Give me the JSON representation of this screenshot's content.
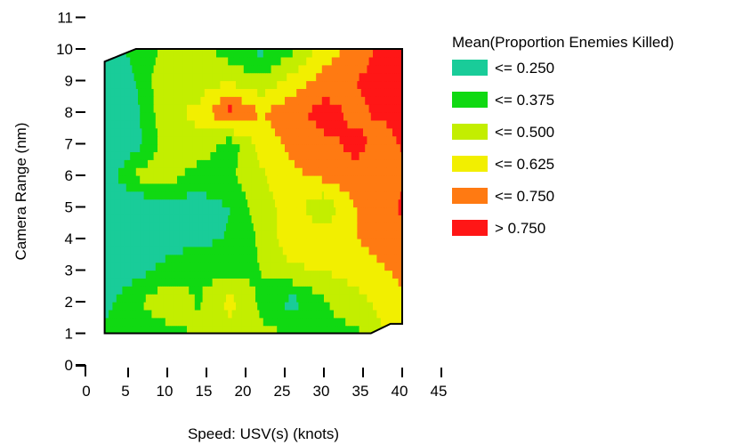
{
  "chart_data": {
    "type": "heatmap",
    "title": "",
    "xlabel": "Speed: USV(s) (knots)",
    "ylabel": "Camera Range (nm)",
    "xlim": [
      0,
      45
    ],
    "ylim": [
      0,
      11
    ],
    "x_ticks": [
      "0",
      "5",
      "10",
      "15",
      "20",
      "25",
      "30",
      "35",
      "40",
      "45"
    ],
    "y_ticks": [
      "0",
      "1",
      "2",
      "3",
      "4",
      "5",
      "6",
      "7",
      "8",
      "9",
      "10",
      "11"
    ],
    "legend_title": "Mean(Proportion Enemies Killed)",
    "legend_position": "right",
    "grid": false,
    "levels": [
      {
        "label": "<= 0.250",
        "color": "#19cc99"
      },
      {
        "label": "<= 0.375",
        "color": "#10d912"
      },
      {
        "label": "<= 0.500",
        "color": "#c3ee00"
      },
      {
        "label": "<= 0.625",
        "color": "#f2ef00"
      },
      {
        "label": "<= 0.750",
        "color": "#ff7a12"
      },
      {
        "label": "> 0.750",
        "color": "#ff1616"
      }
    ],
    "grid_x": [
      2,
      6,
      10,
      14,
      18,
      22,
      26,
      30,
      34,
      38,
      40
    ],
    "grid_y": [
      1,
      2,
      3,
      4,
      5,
      6,
      7,
      8,
      9,
      10
    ],
    "values": [
      [
        0.3,
        0.28,
        0.32,
        0.4,
        0.45,
        0.4,
        0.38,
        0.36,
        0.34,
        0.5,
        0.55
      ],
      [
        0.2,
        0.36,
        0.48,
        0.36,
        0.55,
        0.34,
        0.2,
        0.36,
        0.45,
        0.56,
        0.6
      ],
      [
        0.15,
        0.2,
        0.3,
        0.36,
        0.3,
        0.38,
        0.48,
        0.5,
        0.56,
        0.62,
        0.66
      ],
      [
        0.1,
        0.15,
        0.18,
        0.22,
        0.26,
        0.4,
        0.6,
        0.56,
        0.62,
        0.68,
        0.7
      ],
      [
        0.12,
        0.15,
        0.16,
        0.2,
        0.25,
        0.45,
        0.55,
        0.4,
        0.62,
        0.7,
        0.78
      ],
      [
        0.15,
        0.4,
        0.45,
        0.3,
        0.35,
        0.48,
        0.6,
        0.66,
        0.72,
        0.7,
        0.72
      ],
      [
        0.12,
        0.2,
        0.45,
        0.48,
        0.3,
        0.55,
        0.66,
        0.72,
        0.78,
        0.7,
        0.76
      ],
      [
        0.1,
        0.22,
        0.48,
        0.52,
        0.8,
        0.62,
        0.72,
        0.8,
        0.72,
        0.78,
        0.85
      ],
      [
        0.1,
        0.25,
        0.5,
        0.45,
        0.48,
        0.4,
        0.55,
        0.68,
        0.75,
        0.8,
        0.86
      ],
      [
        0.15,
        0.3,
        0.4,
        0.45,
        0.3,
        0.22,
        0.35,
        0.55,
        0.68,
        0.8,
        0.9
      ]
    ]
  }
}
